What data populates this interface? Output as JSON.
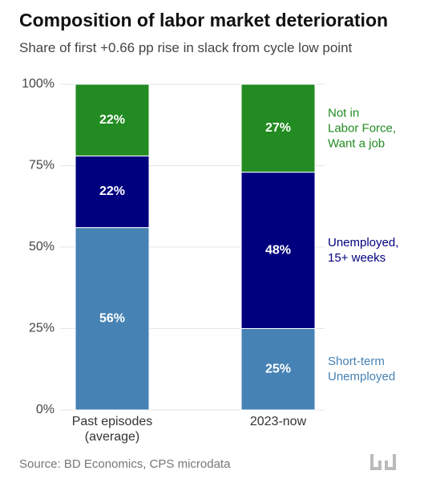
{
  "title": "Composition of labor market deterioration",
  "subtitle": "Share of first +0.66 pp rise in slack from cycle low point",
  "source": "Source: BD Economics, CPS microdata",
  "chart_data": {
    "type": "stacked-bar",
    "categories": [
      "Past episodes\n(average)",
      "2023-now"
    ],
    "series": [
      {
        "name": "Short-term\nUnemployed",
        "color": "#4682b4",
        "values": [
          56,
          25
        ],
        "value_labels": [
          "56%",
          "25%"
        ]
      },
      {
        "name": "Unemployed,\n15+ weeks",
        "color": "#00007f",
        "values": [
          22,
          48
        ],
        "value_labels": [
          "22%",
          "48%"
        ]
      },
      {
        "name": "Not in\nLabor Force,\nWant a job",
        "color": "#228b22",
        "values": [
          22,
          27
        ],
        "value_labels": [
          "22%",
          "27%"
        ]
      }
    ],
    "ylim": [
      0,
      100
    ],
    "yticks": [
      {
        "value": 0,
        "label": "0%"
      },
      {
        "value": 25,
        "label": "25%"
      },
      {
        "value": 50,
        "label": "50%"
      },
      {
        "value": 75,
        "label": "75%"
      },
      {
        "value": 100,
        "label": "100%"
      }
    ],
    "grid": true
  }
}
